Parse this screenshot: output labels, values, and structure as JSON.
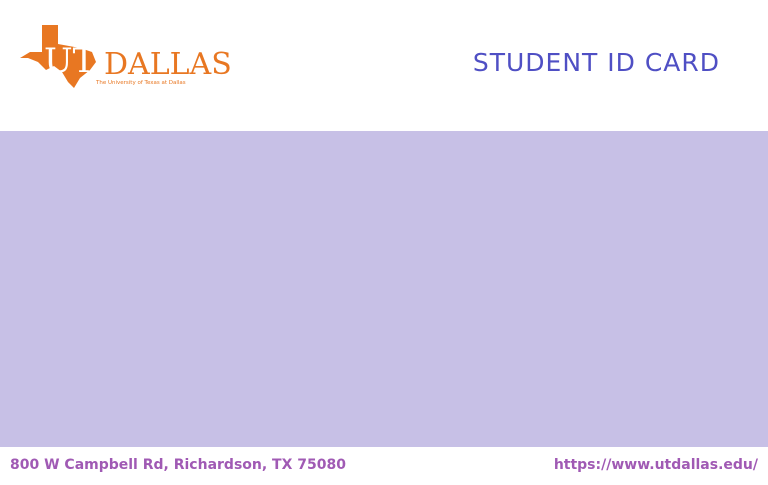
{
  "colors": {
    "brand_orange": "#e87722",
    "title_blue": "#4f4fc4",
    "panel_lavender": "#c7c0e6",
    "footer_text": "#a05ab4"
  },
  "logo": {
    "text_ut": "UT",
    "text_dallas": "DALLAS",
    "tagline": "The University of Texas at Dallas"
  },
  "card": {
    "title": "STUDENT ID CARD"
  },
  "footer": {
    "address": "800 W Campbell Rd, Richardson, TX 75080",
    "website": "https://www.utdallas.edu/"
  }
}
